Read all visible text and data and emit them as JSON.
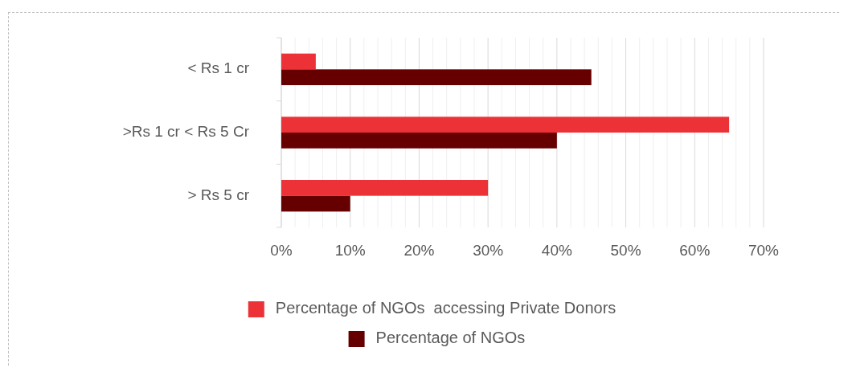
{
  "chart_data": {
    "type": "bar",
    "orientation": "horizontal",
    "categories": [
      "< Rs 1 cr",
      ">Rs 1 cr < Rs 5 Cr",
      "> Rs 5 cr"
    ],
    "series": [
      {
        "name": "Percentage of NGOs  accessing Private Donors",
        "color": "#ec3237",
        "values": [
          5,
          65,
          30
        ]
      },
      {
        "name": "Percentage of NGOs",
        "color": "#660000",
        "values": [
          45,
          40,
          10
        ]
      }
    ],
    "xlim": [
      0,
      70
    ],
    "xticks": [
      {
        "value": 0,
        "label": "0%"
      },
      {
        "value": 2,
        "label": null
      },
      {
        "value": 4,
        "label": null
      },
      {
        "value": 6,
        "label": null
      },
      {
        "value": 8,
        "label": null
      },
      {
        "value": 10,
        "label": "10%"
      },
      {
        "value": 12,
        "label": null
      },
      {
        "value": 14,
        "label": null
      },
      {
        "value": 16,
        "label": null
      },
      {
        "value": 18,
        "label": null
      },
      {
        "value": 20,
        "label": "20%"
      },
      {
        "value": 22,
        "label": null
      },
      {
        "value": 24,
        "label": null
      },
      {
        "value": 26,
        "label": null
      },
      {
        "value": 28,
        "label": null
      },
      {
        "value": 30,
        "label": "30%"
      },
      {
        "value": 32,
        "label": null
      },
      {
        "value": 34,
        "label": null
      },
      {
        "value": 36,
        "label": null
      },
      {
        "value": 38,
        "label": null
      },
      {
        "value": 40,
        "label": "40%"
      },
      {
        "value": 42,
        "label": null
      },
      {
        "value": 44,
        "label": null
      },
      {
        "value": 46,
        "label": null
      },
      {
        "value": 48,
        "label": null
      },
      {
        "value": 50,
        "label": "50%"
      },
      {
        "value": 52,
        "label": null
      },
      {
        "value": 54,
        "label": null
      },
      {
        "value": 56,
        "label": null
      },
      {
        "value": 58,
        "label": null
      },
      {
        "value": 60,
        "label": "60%"
      },
      {
        "value": 62,
        "label": null
      },
      {
        "value": 64,
        "label": null
      },
      {
        "value": 66,
        "label": null
      },
      {
        "value": 68,
        "label": null
      },
      {
        "value": 70,
        "label": "70%"
      }
    ],
    "grid": "x",
    "legend": "bottom"
  }
}
